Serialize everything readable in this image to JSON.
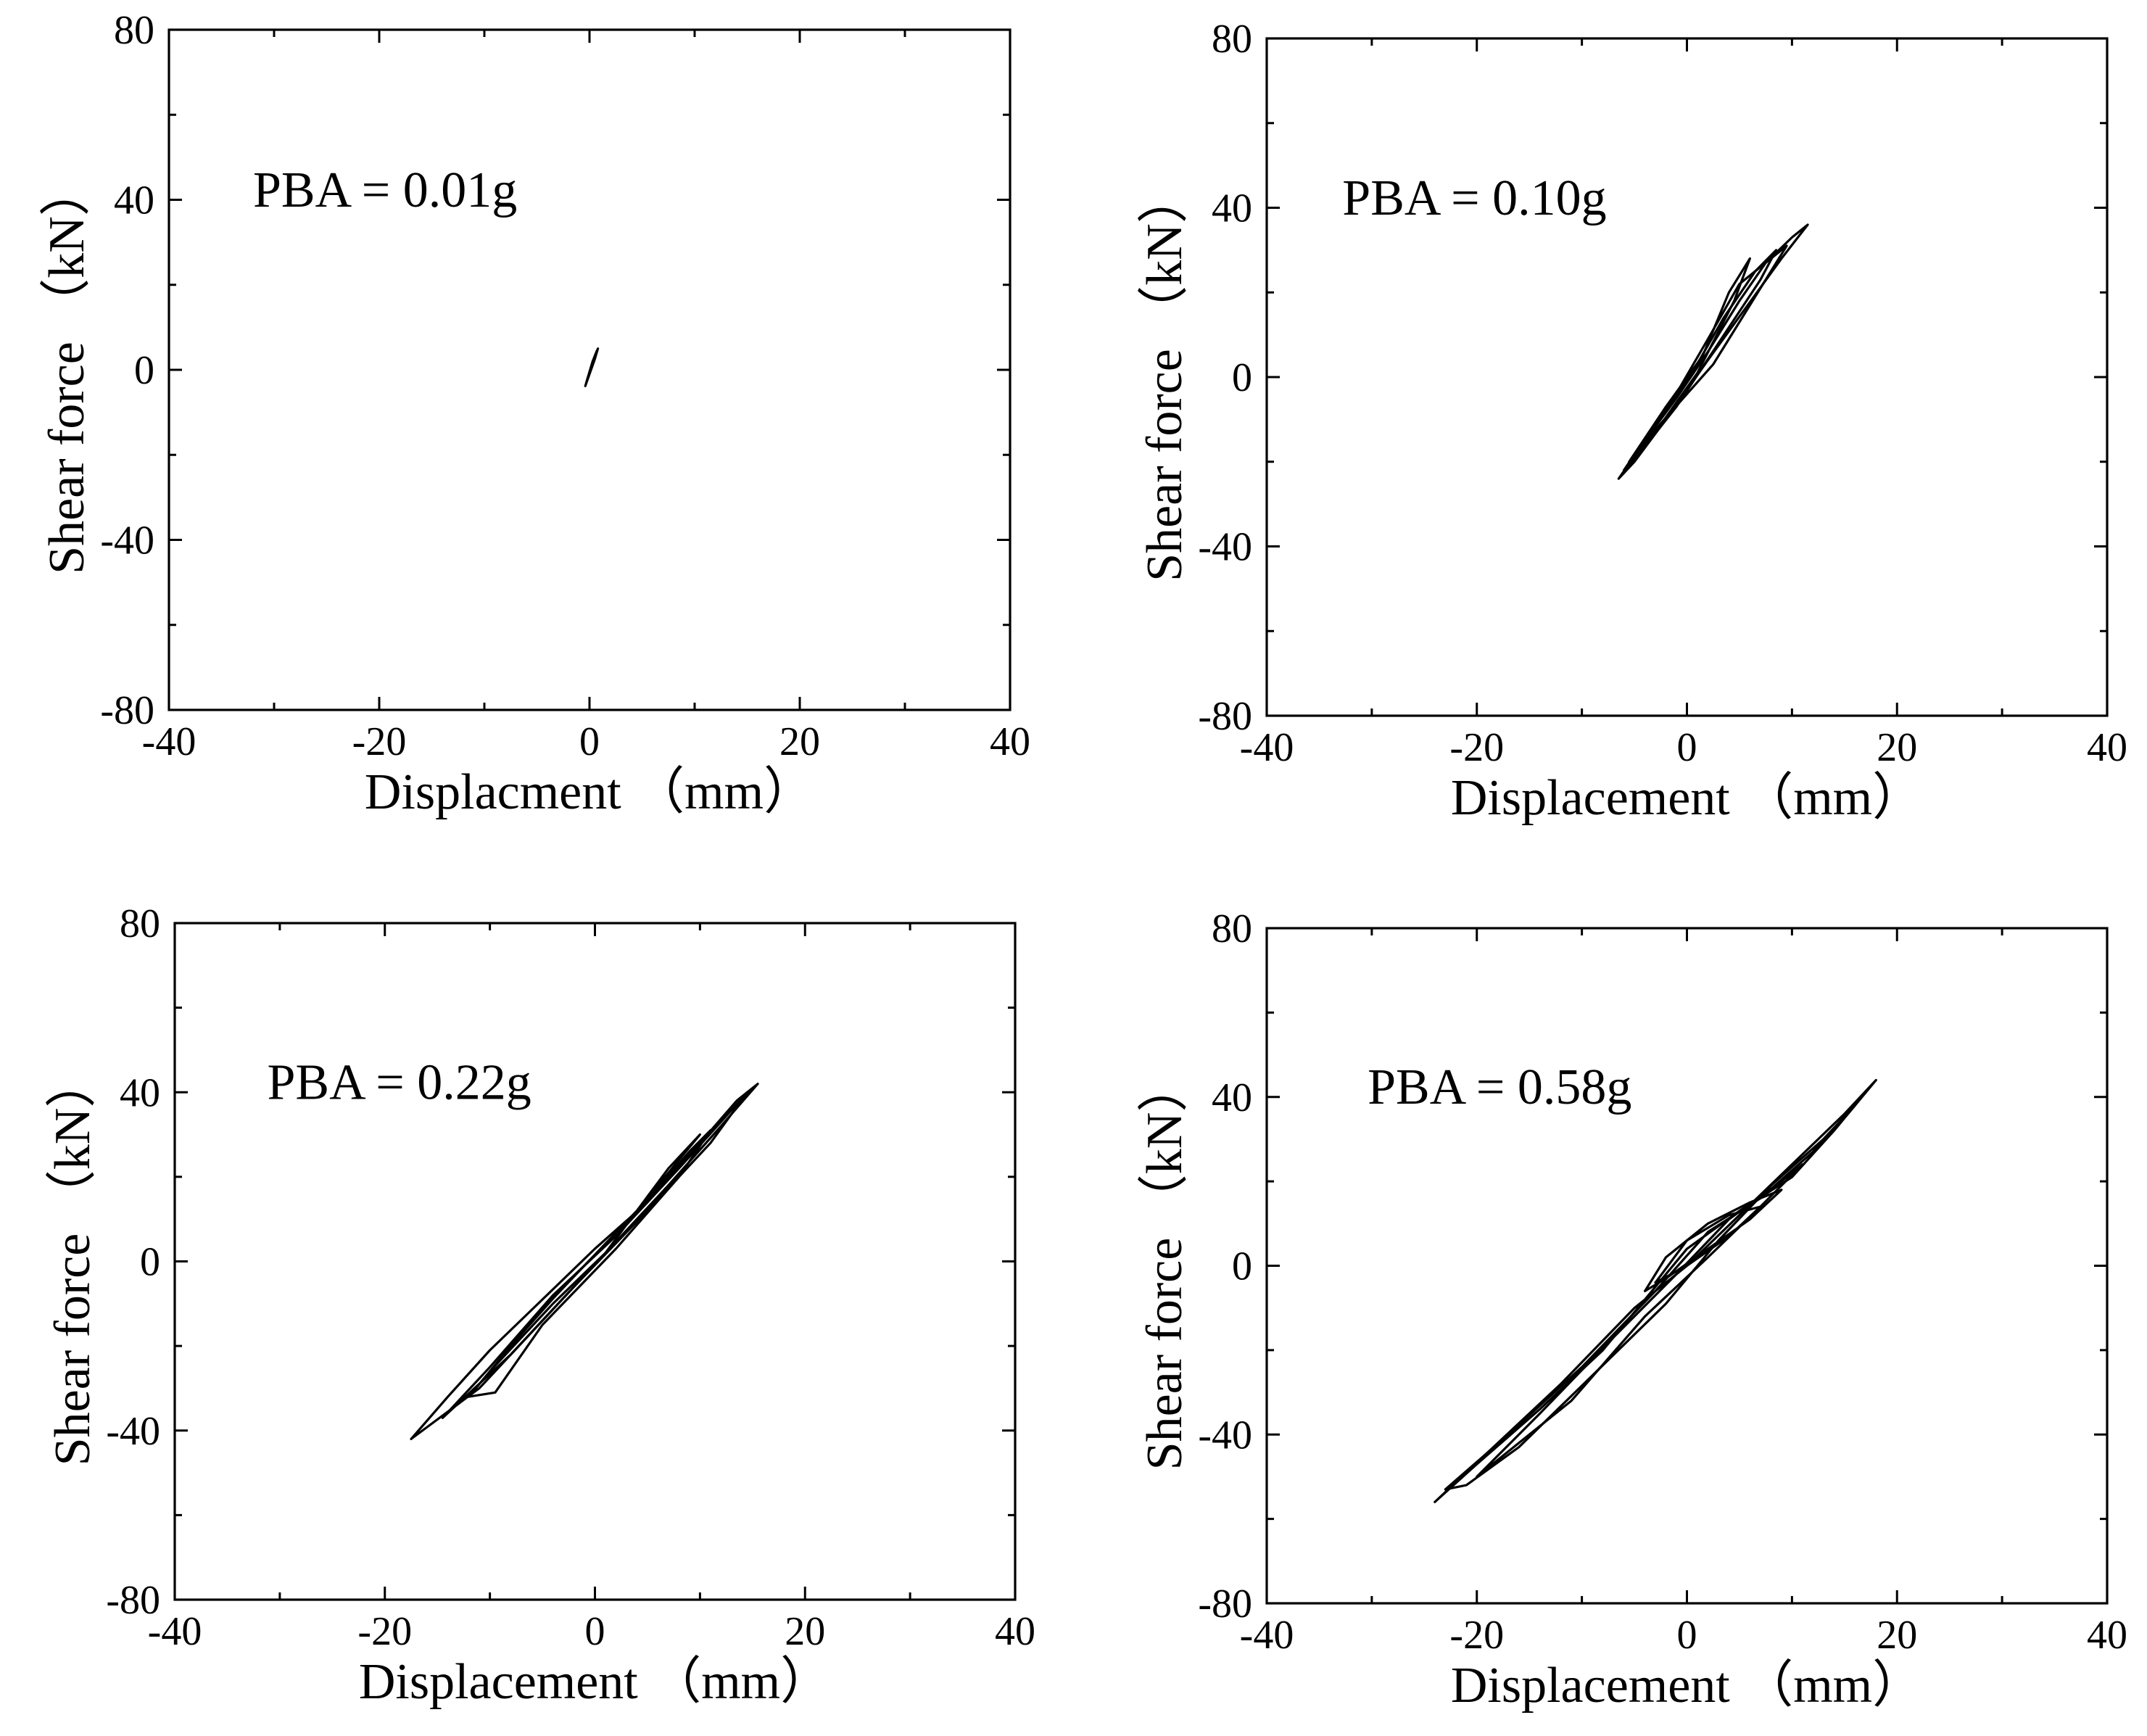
{
  "chart_data": [
    {
      "id": "a",
      "type": "line",
      "annotation": "PBA = 0.01g",
      "xlabel": "Displacment  （mm）",
      "ylabel": "Shear force （kN）",
      "xlim": [
        -40,
        40
      ],
      "ylim": [
        -80,
        80
      ],
      "xticks": [
        -40,
        -20,
        0,
        20,
        40
      ],
      "yticks": [
        -80,
        -40,
        0,
        40,
        80
      ],
      "series": [
        {
          "name": "hysteresis",
          "loops": [
            [
              [
                -0.4,
                -3.8
              ],
              [
                0.0,
                -1.0
              ],
              [
                0.5,
                2.5
              ],
              [
                0.8,
                5.0
              ],
              [
                0.5,
                3.2
              ],
              [
                0.1,
                0.2
              ],
              [
                -0.4,
                -3.8
              ]
            ],
            [
              [
                -0.3,
                -3.0
              ],
              [
                0.2,
                0.5
              ],
              [
                0.7,
                4.5
              ],
              [
                0.3,
                2.0
              ],
              [
                -0.3,
                -3.0
              ]
            ]
          ]
        }
      ]
    },
    {
      "id": "b",
      "type": "line",
      "annotation": "PBA = 0.10g",
      "xlabel": "Displacement （mm）",
      "ylabel": "Shear force （kN）",
      "xlim": [
        -40,
        40
      ],
      "ylim": [
        -80,
        80
      ],
      "xticks": [
        -40,
        -20,
        0,
        20,
        40
      ],
      "yticks": [
        -80,
        -40,
        0,
        40,
        80
      ],
      "series": [
        {
          "name": "hysteresis",
          "loops": [
            [
              [
                -6.5,
                -24
              ],
              [
                -4.0,
                -15
              ],
              [
                -1.0,
                -5
              ],
              [
                2.0,
                6
              ],
              [
                5.0,
                18
              ],
              [
                7.5,
                27
              ],
              [
                10.0,
                33
              ],
              [
                11.5,
                36
              ],
              [
                9.0,
                28
              ],
              [
                5.5,
                16
              ],
              [
                2.0,
                4
              ],
              [
                -2.0,
                -10
              ],
              [
                -5.0,
                -20
              ],
              [
                -6.5,
                -24
              ]
            ],
            [
              [
                -6.0,
                -22
              ],
              [
                -3.0,
                -11
              ],
              [
                0.5,
                1
              ],
              [
                3.5,
                14
              ],
              [
                6.5,
                25
              ],
              [
                8.5,
                30
              ],
              [
                7.0,
                23
              ],
              [
                3.0,
                8
              ],
              [
                -1.0,
                -7
              ],
              [
                -4.5,
                -18
              ],
              [
                -6.0,
                -22
              ]
            ],
            [
              [
                -5.5,
                -20
              ],
              [
                -2.0,
                -7
              ],
              [
                1.5,
                5
              ],
              [
                4.0,
                20
              ],
              [
                6.0,
                28
              ],
              [
                4.5,
                18
              ],
              [
                1.0,
                1
              ],
              [
                -3.0,
                -13
              ],
              [
                -5.5,
                -20
              ]
            ],
            [
              [
                -4.5,
                -17
              ],
              [
                -1.5,
                -6
              ],
              [
                2.0,
                9
              ],
              [
                5.0,
                22
              ],
              [
                9.5,
                31
              ],
              [
                7.0,
                21
              ],
              [
                2.5,
                3
              ],
              [
                -2.5,
                -11
              ],
              [
                -4.5,
                -17
              ]
            ]
          ]
        }
      ]
    },
    {
      "id": "c",
      "type": "line",
      "annotation": "PBA = 0.22g",
      "xlabel": "Displacement （mm）",
      "ylabel": "Shear force （kN）",
      "xlim": [
        -40,
        40
      ],
      "ylim": [
        -80,
        80
      ],
      "xticks": [
        -40,
        -20,
        0,
        20,
        40
      ],
      "yticks": [
        -80,
        -40,
        0,
        40,
        80
      ],
      "series": [
        {
          "name": "hysteresis",
          "loops": [
            [
              [
                -17.5,
                -42
              ],
              [
                -14.0,
                -32
              ],
              [
                -10.0,
                -21
              ],
              [
                -5.0,
                -9
              ],
              [
                0.0,
                3
              ],
              [
                5.0,
                14
              ],
              [
                10.0,
                28
              ],
              [
                13.5,
                38
              ],
              [
                15.5,
                42
              ],
              [
                12.0,
                32
              ],
              [
                7.0,
                18
              ],
              [
                1.0,
                2
              ],
              [
                -5.0,
                -14
              ],
              [
                -11.0,
                -30
              ],
              [
                -17.5,
                -42
              ]
            ],
            [
              [
                -14.5,
                -37
              ],
              [
                -10.0,
                -25
              ],
              [
                -4.0,
                -8
              ],
              [
                2.0,
                6
              ],
              [
                8.0,
                22
              ],
              [
                12.0,
                33
              ],
              [
                14.5,
                40
              ],
              [
                11.0,
                28
              ],
              [
                5.0,
                12
              ],
              [
                -2.0,
                -6
              ],
              [
                -8.0,
                -22
              ],
              [
                -14.5,
                -37
              ]
            ],
            [
              [
                -12.0,
                -32
              ],
              [
                -8.0,
                -20
              ],
              [
                -3.0,
                -6
              ],
              [
                3.0,
                9
              ],
              [
                9.0,
                26
              ],
              [
                11.0,
                31
              ],
              [
                8.0,
                20
              ],
              [
                2.0,
                3
              ],
              [
                -5.0,
                -15
              ],
              [
                -9.5,
                -31
              ],
              [
                -12.0,
                -32
              ]
            ],
            [
              [
                -10.0,
                -26
              ],
              [
                -6.0,
                -14
              ],
              [
                -1.0,
                -1
              ],
              [
                4.0,
                12
              ],
              [
                10.0,
                30
              ],
              [
                7.0,
                22
              ],
              [
                1.0,
                2
              ],
              [
                -4.0,
                -10
              ],
              [
                -10.0,
                -26
              ]
            ]
          ]
        }
      ]
    },
    {
      "id": "d",
      "type": "line",
      "annotation": "PBA = 0.58g",
      "xlabel": "Displacement （mm）",
      "ylabel": "Shear force （kN）",
      "xlim": [
        -40,
        40
      ],
      "ylim": [
        -80,
        80
      ],
      "xticks": [
        -40,
        -20,
        0,
        20,
        40
      ],
      "yticks": [
        -80,
        -40,
        0,
        40,
        80
      ],
      "series": [
        {
          "name": "hysteresis",
          "loops": [
            [
              [
                -24.0,
                -56
              ],
              [
                -20.0,
                -47
              ],
              [
                -14.0,
                -34
              ],
              [
                -8.0,
                -20
              ],
              [
                -4.0,
                -8
              ],
              [
                0.0,
                4
              ],
              [
                5.0,
                13
              ],
              [
                10.0,
                21
              ],
              [
                14.0,
                32
              ],
              [
                18.0,
                44
              ],
              [
                15.0,
                36
              ],
              [
                10.0,
                24
              ],
              [
                5.0,
                12
              ],
              [
                0.0,
                0
              ],
              [
                -5.0,
                -10
              ],
              [
                -12.0,
                -28
              ],
              [
                -18.0,
                -42
              ],
              [
                -24.0,
                -56
              ]
            ],
            [
              [
                -23.0,
                -53
              ],
              [
                -17.0,
                -40
              ],
              [
                -10.0,
                -24
              ],
              [
                -3.0,
                -6
              ],
              [
                2.0,
                8
              ],
              [
                7.0,
                16
              ],
              [
                12.0,
                27
              ],
              [
                16.0,
                38
              ],
              [
                13.0,
                30
              ],
              [
                8.0,
                19
              ],
              [
                3.0,
                6
              ],
              [
                -2.0,
                -9
              ],
              [
                -9.0,
                -26
              ],
              [
                -16.0,
                -43
              ],
              [
                -21.0,
                -52
              ],
              [
                -23.0,
                -53
              ]
            ],
            [
              [
                -20.0,
                -50
              ],
              [
                -14.0,
                -35
              ],
              [
                -7.0,
                -17
              ],
              [
                -1.0,
                -2
              ],
              [
                4.0,
                11
              ],
              [
                9.0,
                20
              ],
              [
                11.0,
                24
              ],
              [
                7.0,
                14
              ],
              [
                2.0,
                2
              ],
              [
                -4.0,
                -12
              ],
              [
                -11.0,
                -32
              ],
              [
                -20.0,
                -50
              ]
            ],
            [
              [
                -4.0,
                -6
              ],
              [
                -2.0,
                2
              ],
              [
                2.0,
                10
              ],
              [
                6.0,
                15
              ],
              [
                9.0,
                18
              ],
              [
                6.0,
                11
              ],
              [
                2.0,
                4
              ],
              [
                -2.0,
                -3
              ],
              [
                -4.0,
                -6
              ]
            ],
            [
              [
                -3.0,
                -4
              ],
              [
                0.0,
                6
              ],
              [
                4.0,
                12
              ],
              [
                7.0,
                14
              ],
              [
                4.0,
                7
              ],
              [
                0.0,
                0
              ],
              [
                -3.0,
                -4
              ]
            ]
          ]
        }
      ]
    }
  ]
}
